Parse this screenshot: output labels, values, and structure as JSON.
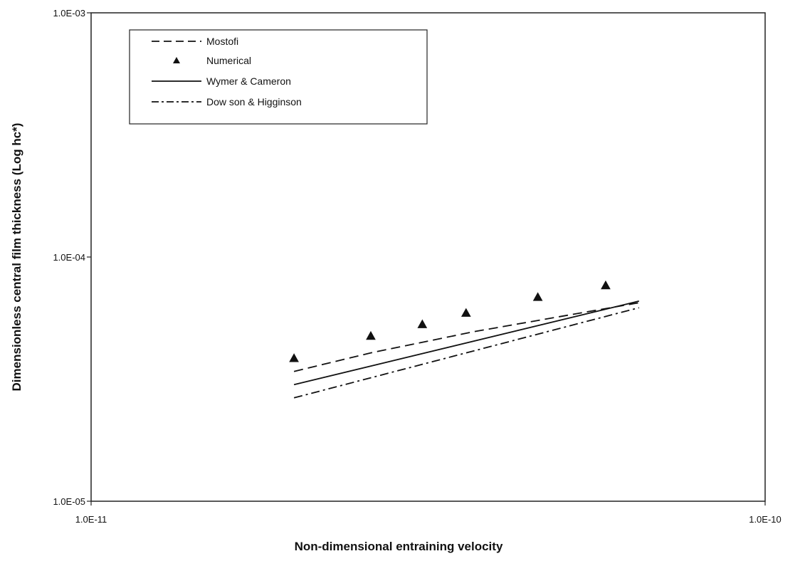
{
  "chart_data": {
    "type": "line",
    "title": "",
    "xlabel": "Non-dimensional entraining velocity",
    "ylabel": "Dimensionless central film thickness (Log hc*)",
    "x_scale": "log",
    "y_scale": "log",
    "xlim": [
      1e-11,
      1e-10
    ],
    "ylim": [
      1e-05,
      0.001
    ],
    "x_ticks": [
      {
        "value": 1e-11,
        "label": "1.0E-11"
      },
      {
        "value": 1e-10,
        "label": "1.0E-10"
      }
    ],
    "y_ticks": [
      {
        "value": 1e-05,
        "label": "1.0E-05"
      },
      {
        "value": 0.0001,
        "label": "1.0E-04"
      },
      {
        "value": 0.001,
        "label": "1.0E-03"
      }
    ],
    "grid": false,
    "legend_position": "top-left",
    "series": [
      {
        "name": "Mostofi",
        "style": "dashed",
        "x": [
          2e-11,
          2.6e-11,
          3.7e-11,
          6.5e-11
        ],
        "y": [
          3.4e-05,
          4.05e-05,
          4.95e-05,
          6.5e-05
        ]
      },
      {
        "name": "Numerical",
        "style": "markers",
        "x": [
          2e-11,
          2.6e-11,
          3.1e-11,
          3.6e-11,
          4.6e-11,
          5.8e-11
        ],
        "y": [
          3.85e-05,
          4.75e-05,
          5.3e-05,
          5.9e-05,
          6.85e-05,
          7.65e-05
        ]
      },
      {
        "name": "Wymer & Cameron",
        "style": "solid",
        "x": [
          2e-11,
          6.5e-11
        ],
        "y": [
          3e-05,
          6.6e-05
        ]
      },
      {
        "name": "Dow son & Higginson",
        "style": "dashdot",
        "x": [
          2e-11,
          6.5e-11
        ],
        "y": [
          2.65e-05,
          6.2e-05
        ]
      }
    ]
  }
}
